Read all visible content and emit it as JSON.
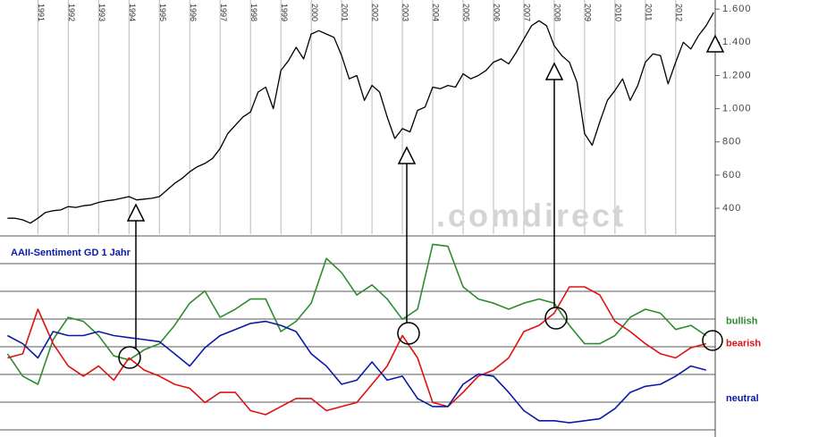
{
  "chart_data": [
    {
      "type": "line",
      "x": [
        1990.0,
        1990.25,
        1990.5,
        1990.75,
        1991.0,
        1991.25,
        1991.5,
        1991.75,
        1992.0,
        1992.25,
        1992.5,
        1992.75,
        1993.0,
        1993.25,
        1993.5,
        1993.75,
        1994.0,
        1994.25,
        1994.5,
        1994.75,
        1995.0,
        1995.25,
        1995.5,
        1995.75,
        1996.0,
        1996.25,
        1996.5,
        1996.75,
        1997.0,
        1997.25,
        1997.5,
        1997.75,
        1998.0,
        1998.25,
        1998.5,
        1998.75,
        1999.0,
        1999.25,
        1999.5,
        1999.75,
        2000.0,
        2000.25,
        2000.5,
        2000.75,
        2001.0,
        2001.25,
        2001.5,
        2001.75,
        2002.0,
        2002.25,
        2002.5,
        2002.75,
        2003.0,
        2003.25,
        2003.5,
        2003.75,
        2004.0,
        2004.25,
        2004.5,
        2004.75,
        2005.0,
        2005.25,
        2005.5,
        2005.75,
        2006.0,
        2006.25,
        2006.5,
        2006.75,
        2007.0,
        2007.25,
        2007.5,
        2007.75,
        2008.0,
        2008.25,
        2008.5,
        2008.75,
        2009.0,
        2009.25,
        2009.5,
        2009.75,
        2010.0,
        2010.25,
        2010.5,
        2010.75,
        2011.0,
        2011.25,
        2011.5,
        2011.75,
        2012.0,
        2012.25,
        2012.5,
        2012.75,
        2013.0,
        2013.25
      ],
      "series": [
        {
          "color": "#000000",
          "values": [
            340,
            340,
            330,
            310,
            340,
            375,
            385,
            390,
            410,
            405,
            415,
            420,
            435,
            445,
            450,
            460,
            470,
            450,
            455,
            460,
            470,
            510,
            550,
            580,
            620,
            650,
            670,
            700,
            760,
            850,
            900,
            950,
            980,
            1100,
            1130,
            1000,
            1230,
            1290,
            1370,
            1300,
            1450,
            1470,
            1450,
            1430,
            1320,
            1180,
            1200,
            1050,
            1140,
            1100,
            950,
            820,
            880,
            860,
            990,
            1010,
            1130,
            1120,
            1140,
            1130,
            1210,
            1180,
            1200,
            1230,
            1280,
            1300,
            1270,
            1340,
            1420,
            1500,
            1530,
            1500,
            1380,
            1320,
            1280,
            1160,
            850,
            780,
            920,
            1050,
            1110,
            1180,
            1050,
            1140,
            1280,
            1330,
            1320,
            1150,
            1280,
            1400,
            1360,
            1440,
            1500,
            1580
          ]
        }
      ],
      "xlim": [
        1989.9,
        2013.3
      ],
      "xticks": [
        1991,
        1992,
        1993,
        1994,
        1995,
        1996,
        1997,
        1998,
        1999,
        2000,
        2001,
        2002,
        2003,
        2004,
        2005,
        2006,
        2007,
        2008,
        2009,
        2010,
        2011,
        2012
      ],
      "ylim": [
        244,
        1628
      ],
      "yticks": [
        {
          "value": 1600,
          "label": "1.600"
        },
        {
          "value": 1400,
          "label": "1.400"
        },
        {
          "value": 1200,
          "label": "1.200"
        },
        {
          "value": 1000,
          "label": "1.000"
        },
        800,
        600,
        400
      ],
      "grid": true,
      "watermark": ".comdirect"
    },
    {
      "type": "line",
      "title": "AAII-Sentiment GD 1 Jahr",
      "x": [
        1990.0,
        1990.5,
        1991.0,
        1991.5,
        1992.0,
        1992.5,
        1993.0,
        1993.5,
        1994.0,
        1994.5,
        1995.0,
        1995.5,
        1996.0,
        1996.5,
        1997.0,
        1997.5,
        1998.0,
        1998.5,
        1999.0,
        1999.5,
        2000.0,
        2000.5,
        2001.0,
        2001.5,
        2002.0,
        2002.5,
        2003.0,
        2003.5,
        2004.0,
        2004.5,
        2005.0,
        2005.5,
        2006.0,
        2006.5,
        2007.0,
        2007.5,
        2008.0,
        2008.5,
        2009.0,
        2009.5,
        2010.0,
        2010.5,
        2011.0,
        2011.5,
        2012.0,
        2012.5,
        2013.0
      ],
      "series": [
        {
          "name": "bullish",
          "color": "#2e8b2e",
          "values": [
            30.5,
            25,
            23,
            34,
            39.5,
            38.5,
            35,
            30,
            29,
            31.5,
            33,
            37.5,
            43,
            46,
            39.5,
            41.5,
            44,
            44,
            36,
            38.5,
            43,
            54,
            50.5,
            45,
            47.5,
            44,
            39,
            41.5,
            57.5,
            57,
            47,
            44,
            43,
            41.5,
            43,
            44,
            43,
            37.5,
            33,
            33,
            35,
            39.5,
            41.5,
            40.5,
            36.5,
            37.5,
            35
          ]
        },
        {
          "name": "bearish",
          "color": "#e01010",
          "values": [
            29.5,
            30.5,
            41.5,
            33,
            27.5,
            25,
            27.5,
            24,
            29.5,
            26.5,
            25,
            23,
            22,
            18.5,
            21,
            21,
            16.5,
            15.5,
            17.5,
            19.5,
            19.5,
            16.5,
            17.5,
            18.5,
            23,
            27.5,
            35,
            29.5,
            18.5,
            17.5,
            21,
            25,
            26.5,
            29.5,
            36,
            37.5,
            40.5,
            47,
            47,
            45,
            38.5,
            36,
            33,
            30.5,
            29.5,
            32,
            33
          ]
        },
        {
          "name": "neutral",
          "color": "#0a1aa8",
          "values": [
            35,
            33,
            29.5,
            36,
            35,
            35,
            36,
            35,
            34.5,
            34,
            33.5,
            30.5,
            27.5,
            32,
            35,
            36.5,
            38,
            38.5,
            37.5,
            36,
            30.5,
            27.5,
            23,
            24,
            28.5,
            24,
            25,
            19.5,
            17.5,
            17.5,
            23,
            25.5,
            25,
            21,
            16.5,
            14,
            14,
            13.5,
            14,
            14.5,
            17,
            21,
            22.5,
            23,
            25,
            27.5,
            26.5
          ]
        }
      ],
      "xlim": [
        1989.9,
        2013.3
      ],
      "ylim": [
        10,
        60
      ],
      "legend": "right"
    }
  ]
}
